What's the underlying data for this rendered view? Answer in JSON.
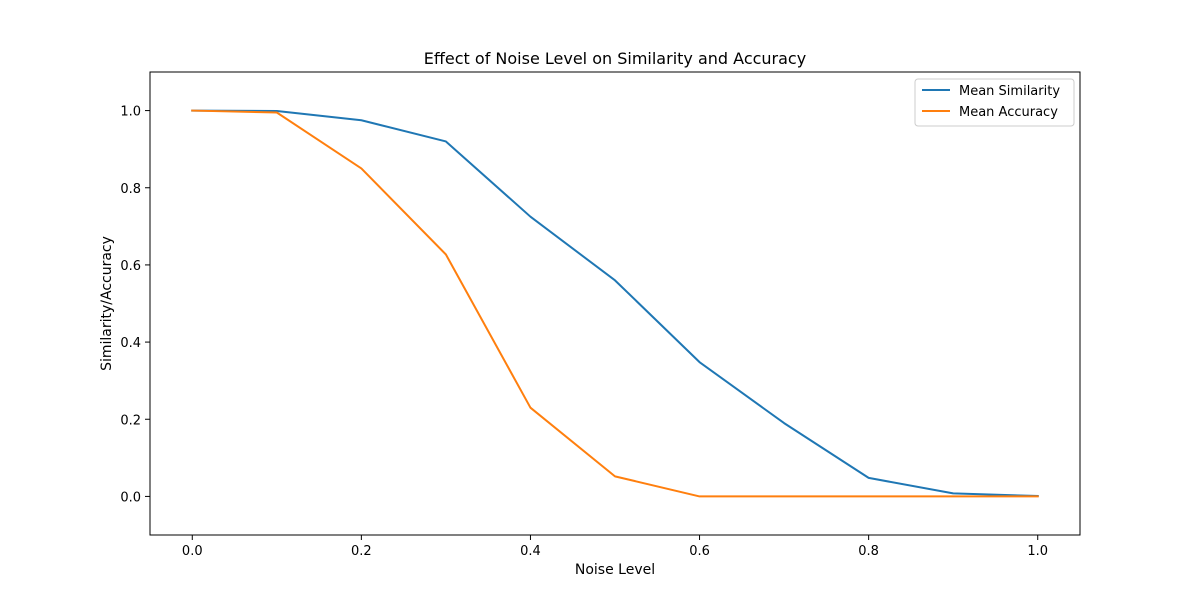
{
  "chart_data": {
    "type": "line",
    "title": "Effect of Noise Level on Similarity and Accuracy",
    "xlabel": "Noise Level",
    "ylabel": "Similarity/Accuracy",
    "xlim": [
      -0.05,
      1.05
    ],
    "ylim": [
      -0.1,
      1.1
    ],
    "xticks": [
      "0.0",
      "0.2",
      "0.4",
      "0.6",
      "0.8",
      "1.0"
    ],
    "yticks": [
      "0.0",
      "0.2",
      "0.4",
      "0.6",
      "0.8",
      "1.0"
    ],
    "grid": false,
    "legend_position": "top-right",
    "x": [
      0.0,
      0.1,
      0.2,
      0.3,
      0.4,
      0.5,
      0.6,
      0.7,
      0.8,
      0.9,
      1.0
    ],
    "series": [
      {
        "name": "Mean Similarity",
        "color": "#1f77b4",
        "values": [
          1.0,
          0.999,
          0.975,
          0.92,
          0.725,
          0.56,
          0.348,
          0.19,
          0.048,
          0.008,
          0.001
        ]
      },
      {
        "name": "Mean Accuracy",
        "color": "#ff7f0e",
        "values": [
          1.0,
          0.995,
          0.85,
          0.627,
          0.23,
          0.052,
          0.0,
          0.0,
          0.0,
          0.0,
          0.0
        ]
      }
    ]
  }
}
